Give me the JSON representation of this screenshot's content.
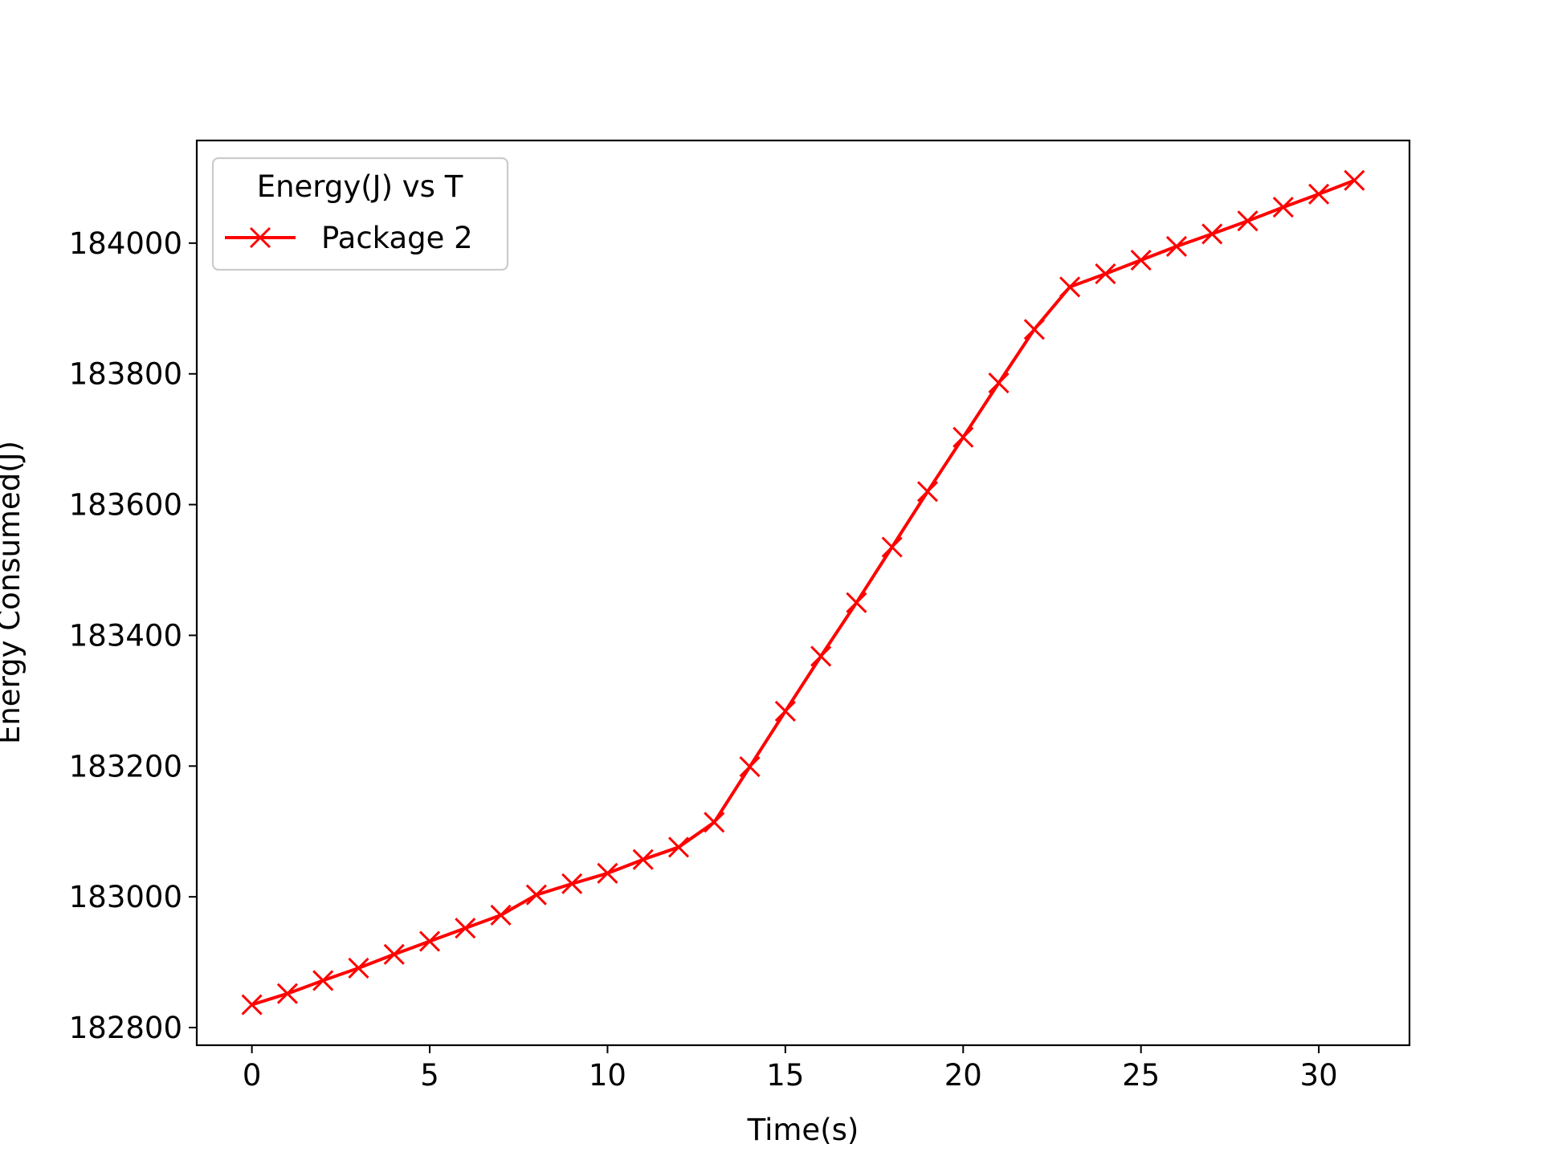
{
  "chart_data": {
    "type": "line",
    "title": "",
    "xlabel": "Time(s)",
    "ylabel": "Energy Consumed(J)",
    "xlim": [
      -1.55,
      32.55
    ],
    "ylim": [
      182773,
      184157
    ],
    "x_ticks": [
      0,
      5,
      10,
      15,
      20,
      25,
      30
    ],
    "y_ticks": [
      182800,
      183000,
      183200,
      183400,
      183600,
      183800,
      184000
    ],
    "grid": false,
    "legend": {
      "title": "Energy(J) vs T",
      "placement": "upper-left"
    },
    "series": [
      {
        "name": "Package 2",
        "color": "#ff0000",
        "marker": "x",
        "x": [
          0,
          1,
          2,
          3,
          4,
          5,
          6,
          7,
          8,
          9,
          10,
          11,
          12,
          13,
          14,
          15,
          16,
          17,
          18,
          19,
          20,
          21,
          22,
          23,
          24,
          25,
          26,
          27,
          28,
          29,
          30,
          31
        ],
        "y": [
          182835,
          182852,
          182872,
          182891,
          182912,
          182932,
          182952,
          182972,
          183003,
          183020,
          183036,
          183057,
          183076,
          183114,
          183199,
          183284,
          183368,
          183450,
          183535,
          183620,
          183703,
          183786,
          183868,
          183933,
          183953,
          183974,
          183995,
          184014,
          184034,
          184055,
          184075,
          184096
        ]
      }
    ]
  }
}
